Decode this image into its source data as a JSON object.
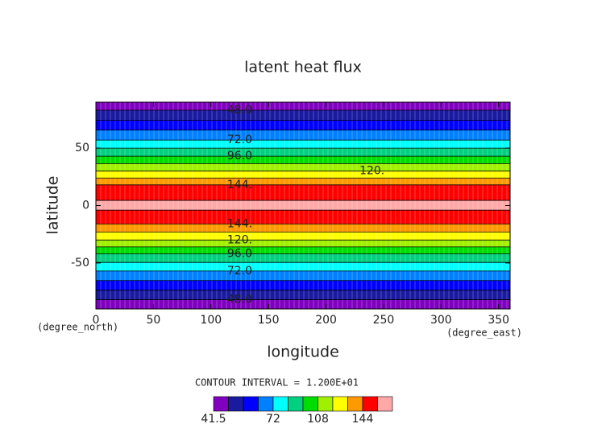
{
  "chart_data": {
    "type": "contour",
    "title": "latent heat flux",
    "xlabel": "longitude",
    "ylabel": "latitude",
    "xunit": "(degree_east)",
    "yunit": "(degree_north)",
    "xlim": [
      0,
      360
    ],
    "ylim": [
      -90,
      90
    ],
    "xticks": [
      0,
      50,
      100,
      150,
      200,
      250,
      300,
      350
    ],
    "yticks": [
      -50,
      0,
      50
    ],
    "profile": {
      "lat": [
        -90,
        -82,
        -57,
        -42,
        -30,
        -16,
        0,
        18,
        30,
        43,
        57,
        83,
        90
      ],
      "values": [
        42,
        48,
        72,
        96,
        120,
        144,
        160,
        144,
        120,
        96,
        72,
        48,
        42
      ]
    },
    "levels": [
      41.5,
      48,
      56,
      64,
      72,
      84,
      96,
      108,
      120,
      132,
      144,
      156,
      168
    ],
    "colors": [
      "#8000c0",
      "#1a1aa0",
      "#0000ff",
      "#0080ff",
      "#00ffff",
      "#00d080",
      "#00dd00",
      "#a0f000",
      "#ffff00",
      "#ff9900",
      "#ff0000",
      "#ffa8a8"
    ],
    "contour_labels": [
      {
        "value": 48,
        "label": "48.0"
      },
      {
        "value": 72,
        "label": "72.0"
      },
      {
        "value": 96,
        "label": "96.0"
      },
      {
        "value": 120,
        "label": "120."
      },
      {
        "value": 144,
        "label": "144."
      }
    ],
    "interval_text": "CONTOUR INTERVAL =",
    "contour_interval": {
      "value": 12,
      "label": "1.200E+01"
    },
    "colorbar_ticks": [
      41.5,
      72,
      108,
      144
    ]
  }
}
